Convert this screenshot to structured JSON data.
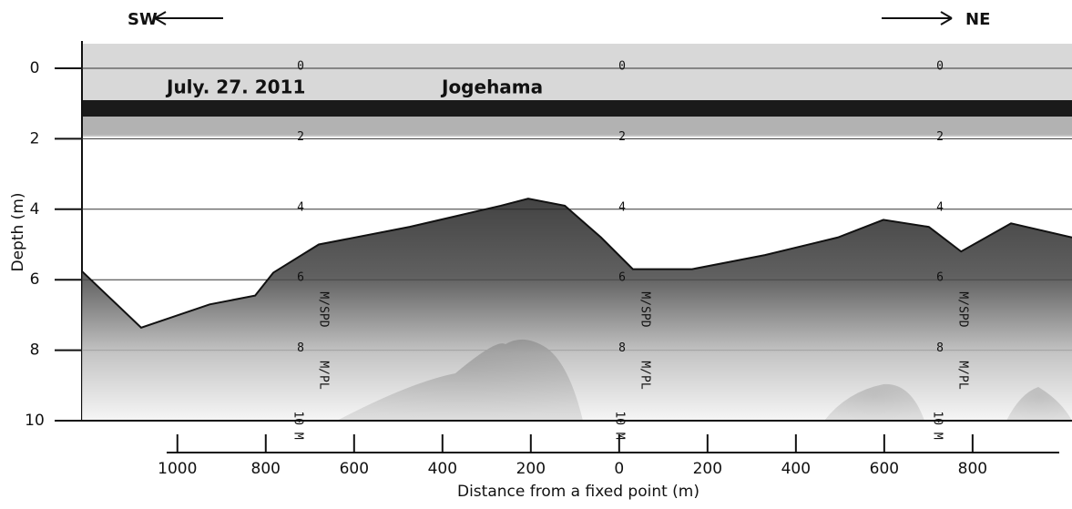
{
  "chart_data": {
    "type": "line",
    "title": "Jogehama",
    "date": "July. 27. 2011",
    "direction_left": "SW",
    "direction_right": "NE",
    "ylabel": "Depth (m)",
    "xlabel": "Distance from a fixed point (m)",
    "annotations": [
      "M/SPD",
      "M/PL",
      "10 M"
    ],
    "ylim": [
      0,
      10
    ],
    "yticks": [
      0,
      2,
      4,
      6,
      8,
      10
    ],
    "y_inverted": true,
    "grid": true,
    "xlim": [
      -1216,
      1025
    ],
    "xticks": [
      {
        "value": -1000,
        "label": "1000"
      },
      {
        "value": -800,
        "label": "800"
      },
      {
        "value": -600,
        "label": "600"
      },
      {
        "value": -400,
        "label": "400"
      },
      {
        "value": -200,
        "label": "200"
      },
      0,
      200,
      400,
      600,
      800
    ],
    "series": [
      {
        "name": "Seabed surface",
        "color": "#111111",
        "x": [
          -1216,
          -1082,
          -927,
          -824,
          -783,
          -680,
          -474,
          -268,
          -206,
          -123,
          -41,
          31,
          165,
          330,
          495,
          598,
          701,
          774,
          887,
          1025
        ],
        "values": [
          5.76,
          7.36,
          6.7,
          6.45,
          5.8,
          5.0,
          4.5,
          3.9,
          3.7,
          3.9,
          4.8,
          5.7,
          5.7,
          5.3,
          4.8,
          4.3,
          4.5,
          5.2,
          4.4,
          4.8
        ]
      }
    ]
  }
}
